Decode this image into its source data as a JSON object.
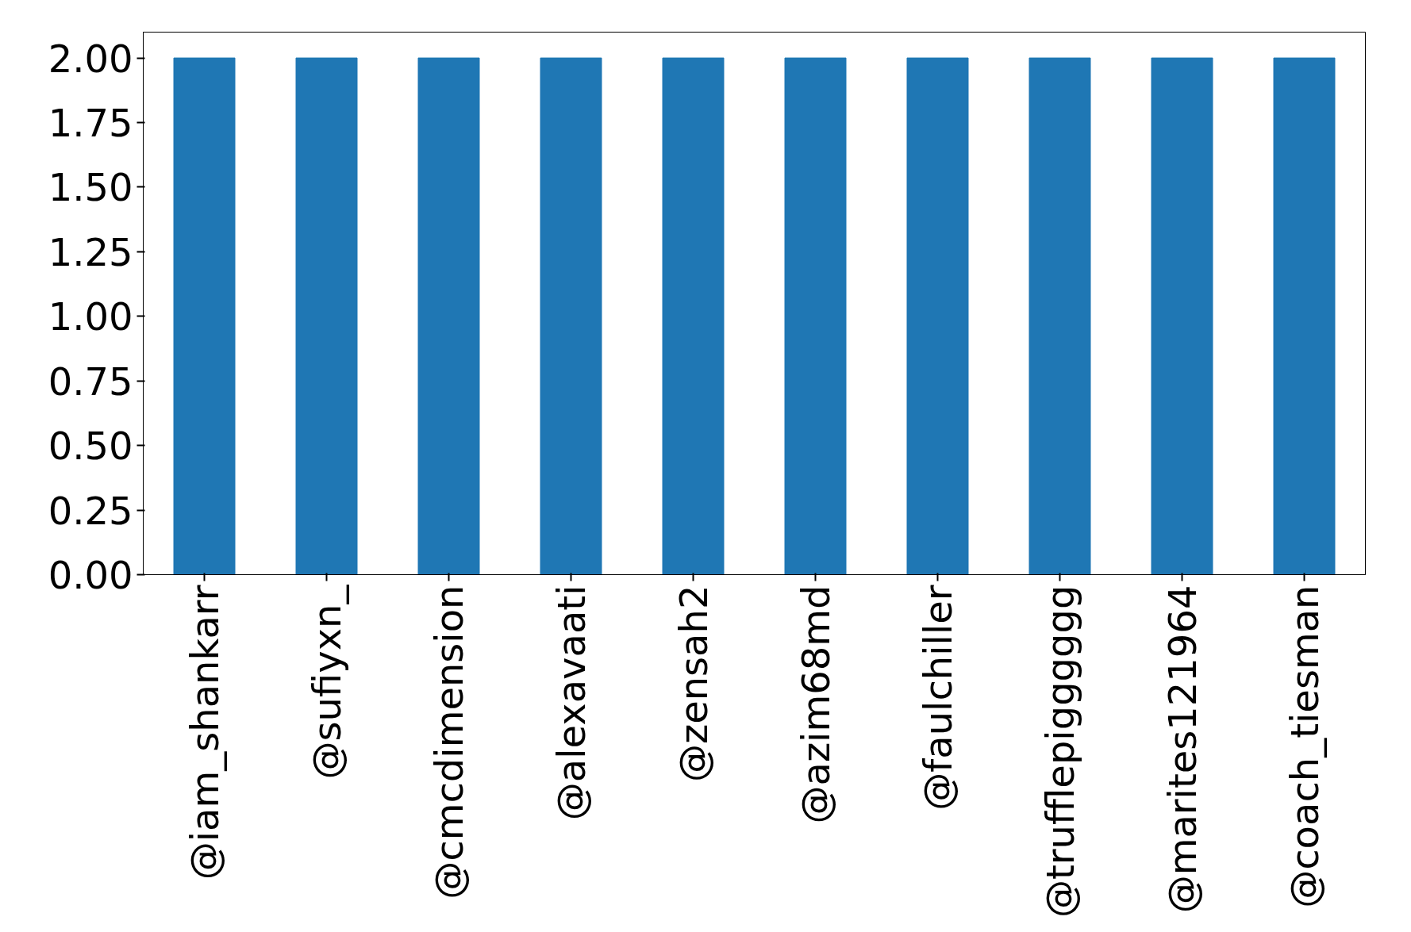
{
  "chart_data": {
    "type": "bar",
    "categories": [
      "@iam_shankarr",
      "@sufiyxn_",
      "@cmcdimension",
      "@alexavaati",
      "@zensah2",
      "@azim68md",
      "@faulchiller",
      "@trufflepigggggg",
      "@marites121964",
      "@coach_tiesman"
    ],
    "values": [
      2,
      2,
      2,
      2,
      2,
      2,
      2,
      2,
      2,
      2
    ],
    "color": "#1f77b4",
    "ylim": [
      0,
      2.1
    ],
    "yticks": [
      {
        "value": 0,
        "label": "0.00"
      },
      {
        "value": 0.25,
        "label": "0.25"
      },
      {
        "value": 0.5,
        "label": "0.50"
      },
      {
        "value": 0.75,
        "label": "0.75"
      },
      {
        "value": 1,
        "label": "1.00"
      },
      {
        "value": 1.25,
        "label": "1.25"
      },
      {
        "value": 1.5,
        "label": "1.50"
      },
      {
        "value": 1.75,
        "label": "1.75"
      },
      {
        "value": 2,
        "label": "2.00"
      }
    ],
    "grid": false
  }
}
